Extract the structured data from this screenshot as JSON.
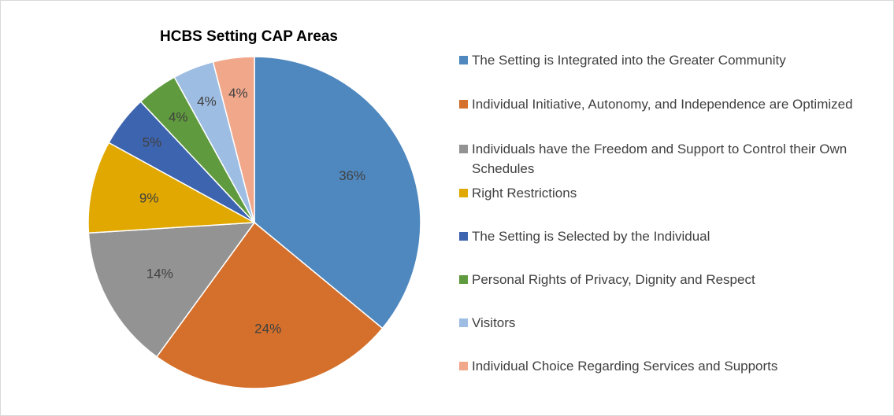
{
  "chart_data": {
    "type": "pie",
    "title": "HCBS Setting CAP Areas",
    "categories": [
      "The Setting is Integrated into the Greater Community",
      "Individual Initiative, Autonomy, and Independence are Optimized",
      "Individuals have the Freedom and Support to Control their Own Schedules",
      "Right Restrictions",
      "The Setting is Selected by the Individual",
      "Personal Rights of Privacy, Dignity and Respect",
      "Visitors",
      "Individual Choice Regarding Services and Supports"
    ],
    "values": [
      36,
      24,
      14,
      9,
      5,
      4,
      4,
      4
    ],
    "value_labels": [
      "36%",
      "24%",
      "14%",
      "9%",
      "5%",
      "4%",
      "4%",
      "4%"
    ],
    "colors": [
      "#4f88bf",
      "#d4702b",
      "#939393",
      "#e0a800",
      "#3d64ae",
      "#5f9b3e",
      "#9ebde3",
      "#f1a78a"
    ],
    "legend": "right"
  }
}
